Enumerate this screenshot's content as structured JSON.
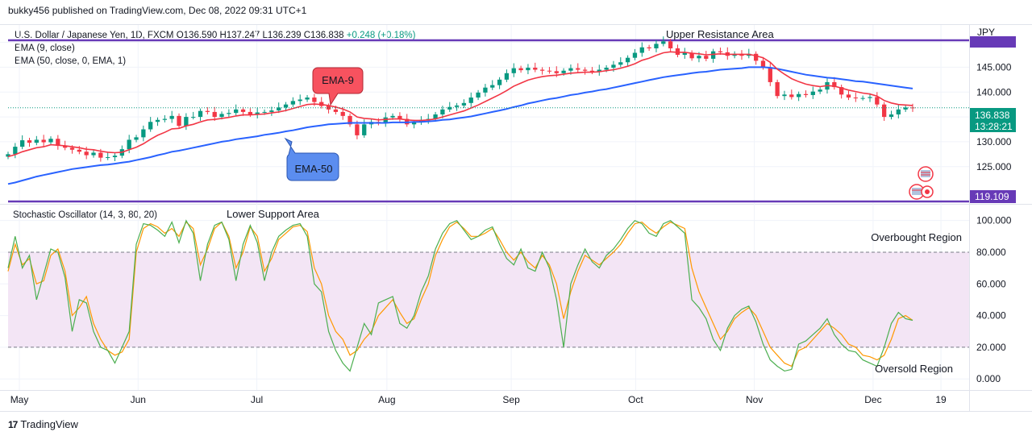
{
  "header": {
    "published": "bukky456 published on TradingView.com, Dec 08, 2022 09:31 UTC+1"
  },
  "legend": {
    "symbol": "U.S. Dollar / Japanese Yen, 1D, FXCM",
    "open": "O136.590",
    "high": "H137.247",
    "low": "L136.239",
    "close": "C136.838",
    "change": "+0.248 (+0.18%)",
    "ema9": "EMA (9, close)",
    "ema50": "EMA (50, close, 0, EMA, 1)"
  },
  "stoch_label": "Stochastic Oscillator (14, 3, 80, 20)",
  "footer": {
    "brand": "TradingView",
    "logo": "17"
  },
  "colors": {
    "bull": "#089981",
    "bear": "#f23645",
    "ema9": "#f23645",
    "ema50": "#2962ff",
    "stoch_k": "#4caf50",
    "stoch_d": "#ff9800",
    "level_line": "#673ab7",
    "band": "#f3e5f5"
  },
  "chart_data": [
    {
      "type": "candlestick",
      "title": "U.S. Dollar / Japanese Yen, 1D, FXCM",
      "currency_label": "JPY",
      "ylim": [
        117.5,
        153.5
      ],
      "y_ticks": [
        "150.000",
        "145.000",
        "140.000",
        "135.000",
        "130.000",
        "125.000"
      ],
      "x_ticks": [
        "May",
        "Jun",
        "Jul",
        "Aug",
        "Sep",
        "Oct",
        "Nov",
        "Dec",
        "19"
      ],
      "last_price": "136.838",
      "countdown": "13:28:21",
      "level_labels": [
        "119.109"
      ],
      "annotations": [
        "Upper Resistance Area",
        "EMA-9",
        "EMA-50"
      ],
      "close_series": [
        127.5,
        129.0,
        130.3,
        129.8,
        130.4,
        129.9,
        130.6,
        129.2,
        128.8,
        128.4,
        128.0,
        127.3,
        127.8,
        126.8,
        126.9,
        127.2,
        128.5,
        130.4,
        130.9,
        132.5,
        134.0,
        134.4,
        134.6,
        135.2,
        133.2,
        135.0,
        135.0,
        136.2,
        136.0,
        135.0,
        135.6,
        135.8,
        136.5,
        136.0,
        135.5,
        135.9,
        136.0,
        136.3,
        136.9,
        137.5,
        138.2,
        138.5,
        138.9,
        138.0,
        137.2,
        136.5,
        136.0,
        135.2,
        133.5,
        131.3,
        133.5,
        134.0,
        133.8,
        134.9,
        135.2,
        134.6,
        133.5,
        133.9,
        134.4,
        134.6,
        135.5,
        136.5,
        137.0,
        137.3,
        137.8,
        138.9,
        139.9,
        140.9,
        141.4,
        142.5,
        143.8,
        144.8,
        144.4,
        144.9,
        144.5,
        144.3,
        144.2,
        143.8,
        144.3,
        144.8,
        144.5,
        144.3,
        144.1,
        144.5,
        144.9,
        145.5,
        146.0,
        146.9,
        147.9,
        149.0,
        148.8,
        149.7,
        150.2,
        148.8,
        147.5,
        147.9,
        146.8,
        147.3,
        146.7,
        148.2,
        148.0,
        147.3,
        147.7,
        147.3,
        147.7,
        146.3,
        145.0,
        142.0,
        139.2,
        139.5,
        139.0,
        139.6,
        139.4,
        140.1,
        140.5,
        142.0,
        141.0,
        139.5,
        138.9,
        138.8,
        138.8,
        139.0,
        137.5,
        135.0,
        135.5,
        136.5,
        136.9,
        136.8
      ],
      "ema9_series": [
        127.0,
        127.4,
        128.0,
        128.4,
        128.8,
        129.0,
        129.4,
        129.3,
        129.2,
        129.0,
        128.8,
        128.5,
        128.4,
        128.1,
        127.9,
        127.8,
        127.9,
        128.4,
        128.9,
        129.6,
        130.5,
        131.3,
        131.9,
        132.6,
        132.7,
        133.2,
        133.5,
        134.0,
        134.4,
        134.5,
        134.7,
        134.9,
        135.2,
        135.4,
        135.4,
        135.5,
        135.6,
        135.8,
        136.0,
        136.3,
        136.7,
        137.1,
        137.5,
        137.6,
        137.5,
        137.3,
        137.0,
        136.6,
        136.0,
        135.0,
        134.7,
        134.6,
        134.4,
        134.5,
        134.6,
        134.6,
        134.4,
        134.3,
        134.3,
        134.4,
        134.6,
        135.0,
        135.4,
        135.8,
        136.2,
        136.8,
        137.4,
        138.1,
        138.8,
        139.5,
        140.3,
        141.2,
        141.8,
        142.4,
        142.8,
        143.1,
        143.3,
        143.4,
        143.6,
        143.8,
        143.9,
        144.0,
        144.0,
        144.1,
        144.3,
        144.5,
        144.8,
        145.2,
        145.7,
        146.4,
        146.8,
        147.4,
        147.9,
        148.1,
        148.0,
        148.0,
        147.8,
        147.7,
        147.5,
        147.6,
        147.7,
        147.6,
        147.6,
        147.6,
        147.6,
        147.3,
        146.9,
        146.0,
        144.6,
        143.6,
        142.7,
        142.1,
        141.6,
        141.3,
        141.1,
        141.3,
        141.2,
        140.8,
        140.4,
        140.1,
        139.8,
        139.6,
        139.2,
        138.3,
        137.8,
        137.5,
        137.4,
        137.3
      ],
      "ema50_series": [
        121.5,
        121.8,
        122.2,
        122.6,
        123.0,
        123.3,
        123.6,
        123.9,
        124.2,
        124.5,
        124.7,
        124.9,
        125.1,
        125.3,
        125.4,
        125.6,
        125.8,
        126.0,
        126.3,
        126.6,
        126.9,
        127.3,
        127.6,
        128.0,
        128.2,
        128.5,
        128.8,
        129.1,
        129.4,
        129.7,
        130.0,
        130.2,
        130.5,
        130.7,
        130.9,
        131.1,
        131.4,
        131.6,
        131.8,
        132.1,
        132.3,
        132.6,
        132.9,
        133.1,
        133.3,
        133.5,
        133.6,
        133.7,
        133.8,
        133.8,
        133.8,
        133.8,
        133.8,
        133.8,
        133.9,
        133.9,
        133.9,
        134.0,
        134.0,
        134.1,
        134.2,
        134.4,
        134.5,
        134.7,
        134.9,
        135.1,
        135.4,
        135.7,
        136.0,
        136.3,
        136.6,
        137.0,
        137.3,
        137.7,
        138.0,
        138.3,
        138.6,
        138.8,
        139.1,
        139.4,
        139.6,
        139.9,
        140.1,
        140.4,
        140.6,
        140.9,
        141.2,
        141.5,
        141.8,
        142.1,
        142.4,
        142.7,
        143.0,
        143.2,
        143.4,
        143.6,
        143.8,
        144.0,
        144.1,
        144.3,
        144.5,
        144.6,
        144.7,
        144.8,
        145.0,
        145.0,
        145.0,
        144.9,
        144.7,
        144.4,
        144.1,
        143.8,
        143.5,
        143.3,
        143.1,
        142.9,
        142.8,
        142.6,
        142.4,
        142.2,
        142.1,
        141.9,
        141.7,
        141.5,
        141.3,
        141.1,
        140.9,
        140.7
      ]
    },
    {
      "type": "line",
      "title": "Stochastic Oscillator (14, 3, 80, 20)",
      "ylim": [
        -7,
        110
      ],
      "y_ticks": [
        "100.000",
        "80.000",
        "60.000",
        "40.000",
        "20.000",
        "0.000"
      ],
      "band": [
        20,
        80
      ],
      "annotations": [
        "Lower Support Area",
        "Overbought Region",
        "Oversold Region"
      ],
      "series": [
        {
          "values": [
            68,
            85,
            72,
            76,
            60,
            62,
            78,
            82,
            68,
            40,
            45,
            52,
            35,
            25,
            18,
            15,
            17,
            25,
            80,
            95,
            98,
            96,
            92,
            95,
            90,
            99,
            95,
            72,
            82,
            95,
            99,
            90,
            70,
            80,
            96,
            90,
            68,
            76,
            88,
            92,
            96,
            97,
            93,
            70,
            60,
            40,
            30,
            25,
            15,
            18,
            25,
            30,
            40,
            45,
            50,
            42,
            35,
            38,
            50,
            60,
            78,
            88,
            96,
            99,
            95,
            90,
            90,
            92,
            95,
            88,
            80,
            75,
            80,
            74,
            70,
            78,
            72,
            60,
            38,
            55,
            68,
            78,
            75,
            72,
            76,
            80,
            85,
            92,
            98,
            99,
            95,
            92,
            96,
            99,
            97,
            95,
            70,
            55,
            45,
            35,
            25,
            30,
            38,
            42,
            45,
            40,
            30,
            20,
            15,
            10,
            8,
            18,
            20,
            25,
            30,
            35,
            32,
            28,
            22,
            20,
            15,
            14,
            12,
            15,
            25,
            38,
            40,
            37
          ],
          "values_k": [
            70,
            90,
            70,
            78,
            50,
            66,
            82,
            80,
            64,
            30,
            50,
            48,
            30,
            20,
            18,
            10,
            20,
            30,
            85,
            98,
            97,
            94,
            90,
            99,
            86,
            100,
            92,
            62,
            85,
            97,
            99,
            88,
            62,
            85,
            97,
            86,
            62,
            80,
            90,
            94,
            97,
            98,
            90,
            60,
            55,
            30,
            18,
            10,
            5,
            20,
            35,
            28,
            48,
            50,
            52,
            35,
            32,
            40,
            55,
            65,
            82,
            92,
            98,
            100,
            94,
            88,
            90,
            94,
            96,
            85,
            76,
            72,
            82,
            70,
            68,
            80,
            70,
            50,
            20,
            60,
            72,
            82,
            74,
            70,
            78,
            82,
            88,
            95,
            100,
            98,
            92,
            90,
            98,
            100,
            96,
            92,
            50,
            45,
            38,
            25,
            18,
            32,
            40,
            44,
            46,
            36,
            22,
            12,
            8,
            5,
            6,
            22,
            24,
            28,
            32,
            38,
            28,
            22,
            18,
            17,
            12,
            10,
            8,
            20,
            35,
            42,
            38,
            37
          ]
        }
      ]
    }
  ]
}
